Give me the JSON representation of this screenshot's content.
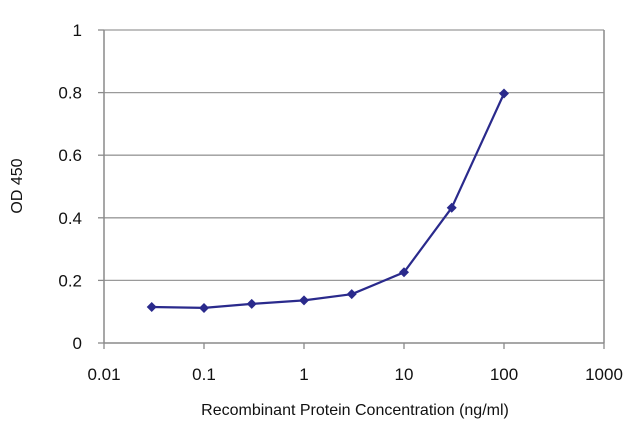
{
  "chart_data": {
    "type": "line",
    "xlabel": "Recombinant Protein Concentration (ng/ml)",
    "ylabel": "OD 450",
    "xscale": "log",
    "xlim": [
      0.01,
      1000
    ],
    "ylim": [
      0,
      1
    ],
    "grid": "horizontal",
    "legend": "none",
    "x_ticks": [
      "0.01",
      "0.1",
      "1",
      "10",
      "100",
      "1000"
    ],
    "y_ticks": [
      "0",
      "0.2",
      "0.4",
      "0.6",
      "0.8",
      "1"
    ],
    "series": [
      {
        "color": "#2a2a8c",
        "marker": "diamond",
        "x": [
          0.03,
          0.1,
          0.3,
          1,
          3,
          10,
          30,
          100
        ],
        "y": [
          0.115,
          0.112,
          0.125,
          0.136,
          0.156,
          0.226,
          0.432,
          0.797
        ]
      }
    ]
  }
}
